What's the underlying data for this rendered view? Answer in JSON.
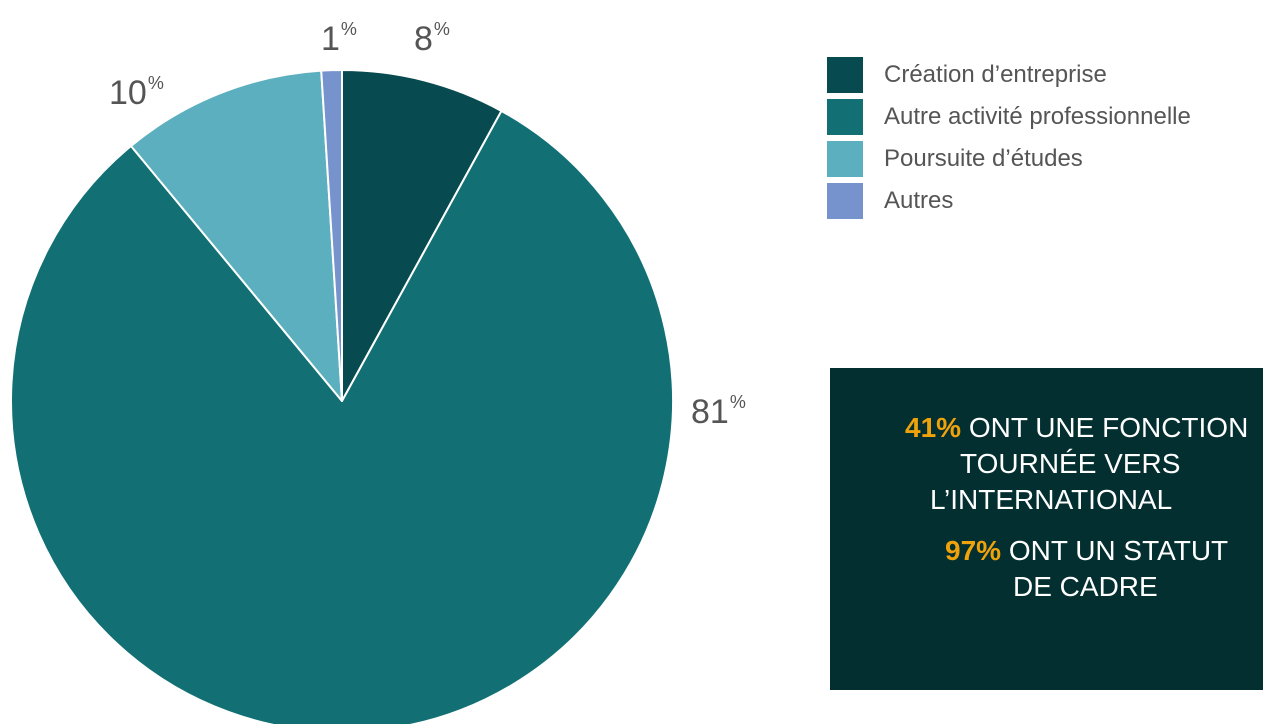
{
  "chart_data": {
    "type": "pie",
    "slices": [
      {
        "label": "Création d’entreprise",
        "value": 8,
        "color": "#074a4f"
      },
      {
        "label": "Autre activité professionnelle",
        "value": 81,
        "color": "#127075"
      },
      {
        "label": "Poursuite d’études",
        "value": 10,
        "color": "#5bafbe"
      },
      {
        "label": "Autres",
        "value": 1,
        "color": "#7693cd"
      }
    ],
    "slice_labels": [
      {
        "value": "8",
        "unit": "%"
      },
      {
        "value": "81",
        "unit": "%"
      },
      {
        "value": "10",
        "unit": "%"
      },
      {
        "value": "1",
        "unit": "%"
      }
    ],
    "legend_placement": "top-right"
  },
  "callout": {
    "stat1": {
      "value": "41%",
      "line1": "ONT UNE FONCTION",
      "line2": "TOURNÉE VERS",
      "line3": "L’INTERNATIONAL"
    },
    "stat2": {
      "value": "97%",
      "line1": "ONT UN STATUT",
      "line2": "DE CADRE"
    },
    "background_color": "#042f30",
    "highlight_color": "#f0a20b"
  }
}
